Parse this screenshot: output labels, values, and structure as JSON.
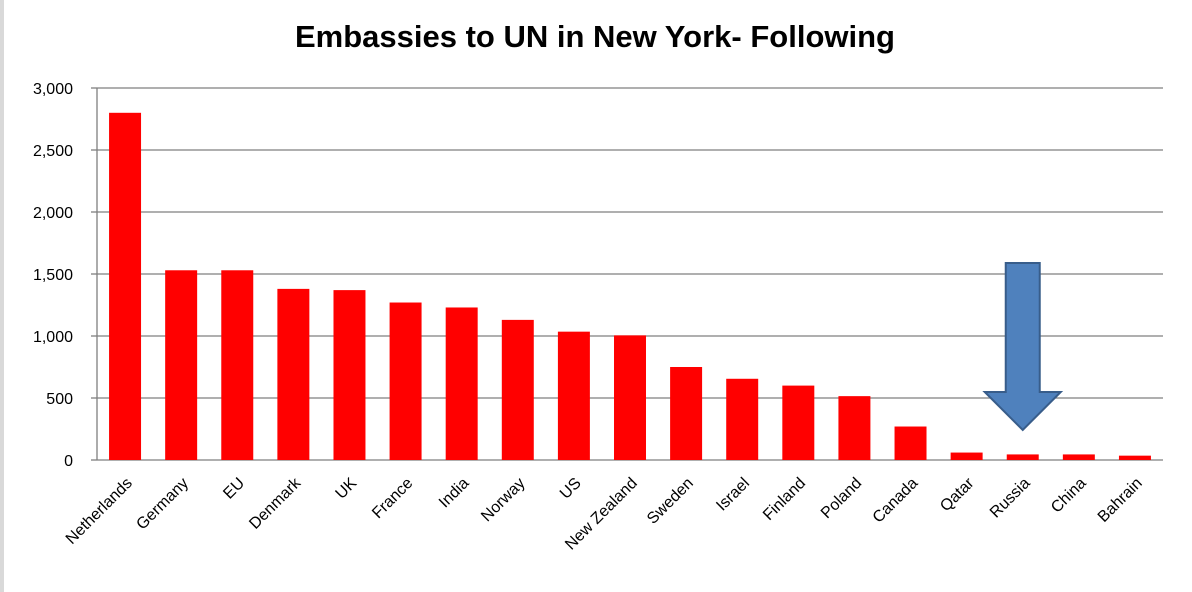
{
  "chart_data": {
    "type": "bar",
    "title": "Embassies to UN in New York- Following",
    "xlabel": "",
    "ylabel": "",
    "categories": [
      "Netherlands",
      "Germany",
      "EU",
      "Denmark",
      "UK",
      "France",
      "India",
      "Norway",
      "US",
      "New Zealand",
      "Sweden",
      "Israel",
      "Finland",
      "Poland",
      "Canada",
      "Qatar",
      "Russia",
      "China",
      "Bahrain"
    ],
    "values": [
      2800,
      1530,
      1530,
      1380,
      1370,
      1270,
      1230,
      1130,
      1035,
      1005,
      750,
      655,
      600,
      515,
      270,
      60,
      45,
      45,
      35
    ],
    "ylim": [
      0,
      3000
    ],
    "yticks": [
      "0",
      "500",
      "1,000",
      "1,500",
      "2,000",
      "2,500",
      "3,000"
    ],
    "grid": true,
    "legend": "none",
    "bar_color": "#ff0000",
    "highlight": {
      "category": "Russia",
      "marker": "down-arrow",
      "color": "#4f81bd",
      "outline": "#385d8a"
    }
  }
}
